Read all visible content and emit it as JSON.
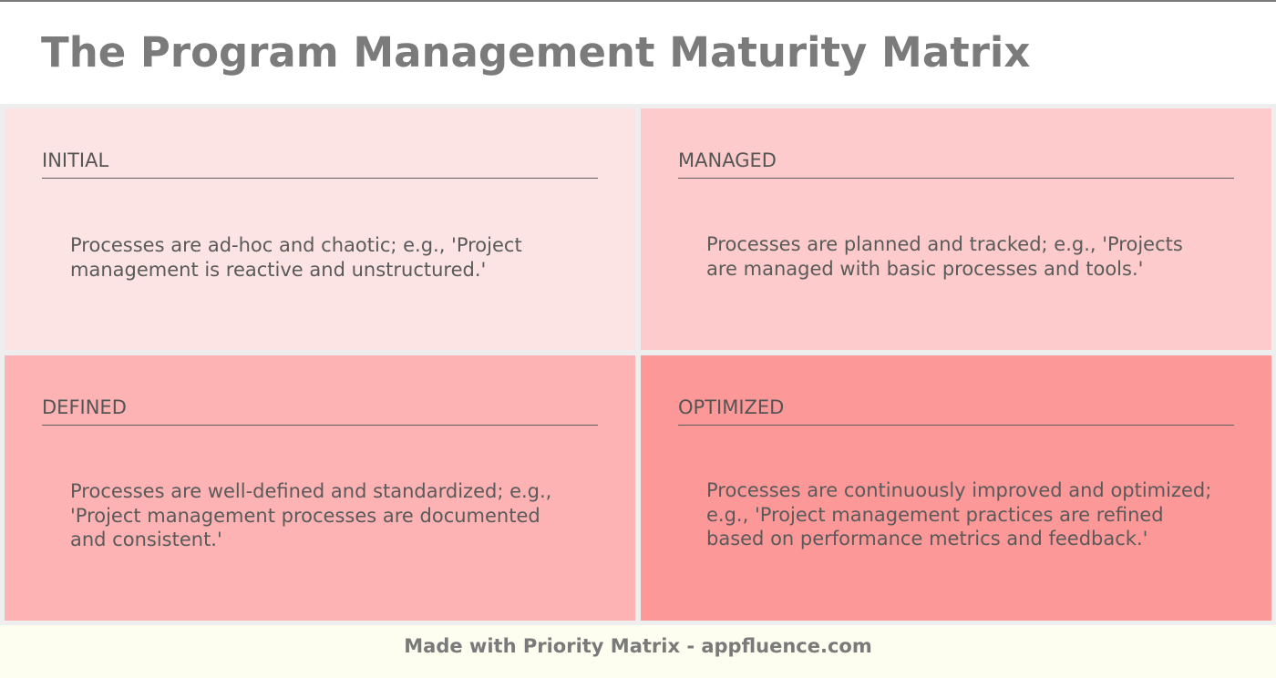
{
  "title": "The Program Management Maturity Matrix",
  "colors": {
    "initial": "#fde4e4",
    "managed": "#fdcbcb",
    "defined": "#fdb3b3",
    "optimized": "#fd9898",
    "heading_text": "#555555",
    "title_text": "#7b7b7b",
    "footer_background": "#fdfdf0"
  },
  "quadrants": [
    {
      "id": "initial",
      "heading": "INITIAL",
      "text": "Processes are ad-hoc and chaotic; e.g., 'Project management is reactive and unstructured.'"
    },
    {
      "id": "managed",
      "heading": "MANAGED",
      "text": "Processes are planned and tracked; e.g., 'Projects are managed with basic processes and tools.'"
    },
    {
      "id": "defined",
      "heading": "DEFINED",
      "text": "Processes are well-defined and standardized; e.g., 'Project management processes are documented and consistent.'"
    },
    {
      "id": "optimized",
      "heading": "OPTIMIZED",
      "text": "Processes are continuously improved and optimized; e.g., 'Project management practices are refined based on performance metrics and feedback.'"
    }
  ],
  "footer": {
    "text": "Made with Priority Matrix - appfluence.com"
  }
}
